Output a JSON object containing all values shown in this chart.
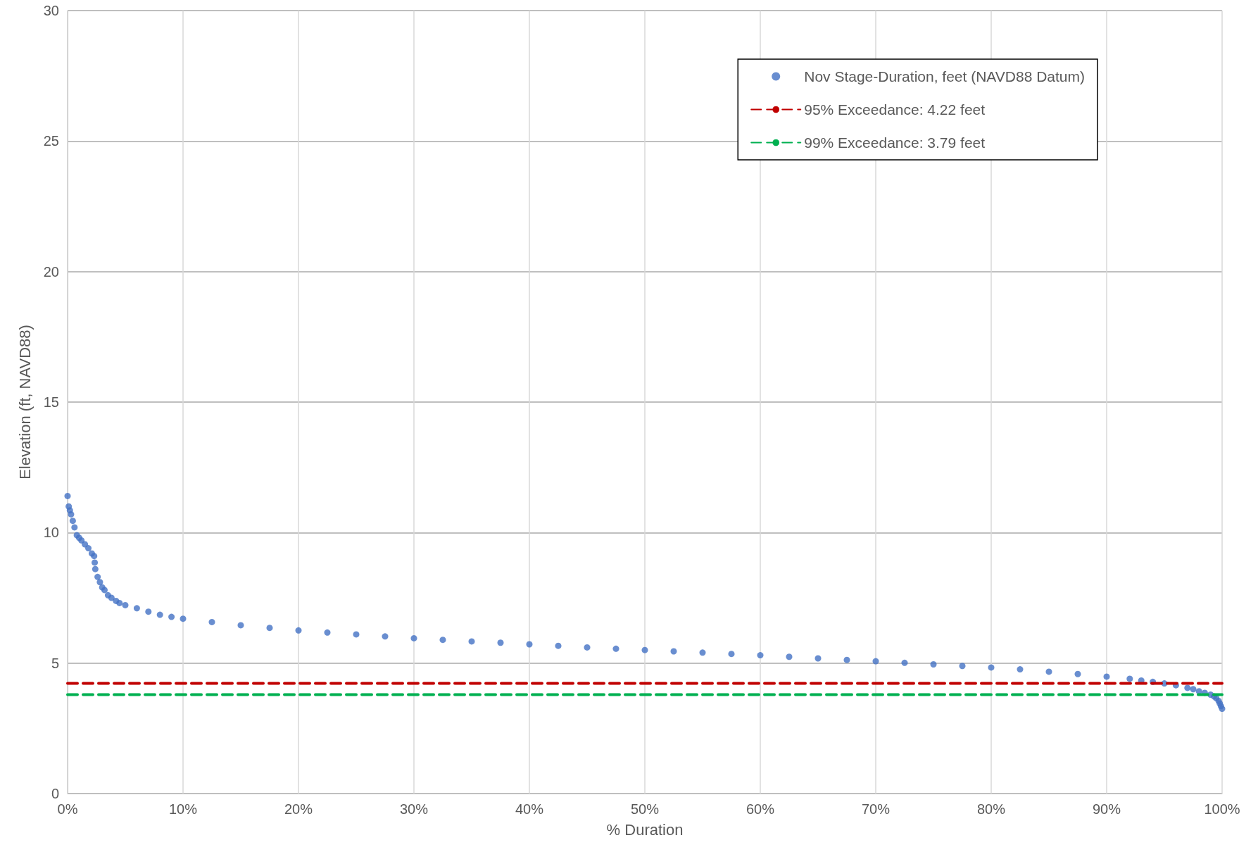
{
  "chart_data": {
    "type": "scatter",
    "xlabel": "% Duration",
    "ylabel": "Elevation (ft, NAVD88)",
    "xlim": [
      0,
      100
    ],
    "ylim": [
      0,
      30
    ],
    "xticks": [
      {
        "value": 0,
        "label": "0%"
      },
      {
        "value": 10,
        "label": "10%"
      },
      {
        "value": 20,
        "label": "20%"
      },
      {
        "value": 30,
        "label": "30%"
      },
      {
        "value": 40,
        "label": "40%"
      },
      {
        "value": 50,
        "label": "50%"
      },
      {
        "value": 60,
        "label": "60%"
      },
      {
        "value": 70,
        "label": "70%"
      },
      {
        "value": 80,
        "label": "80%"
      },
      {
        "value": 90,
        "label": "90%"
      },
      {
        "value": 100,
        "label": "100%"
      }
    ],
    "yticks": [
      0,
      5,
      10,
      15,
      20,
      25,
      30
    ],
    "grid": true,
    "legend": "top right",
    "marker": "circle",
    "series": [
      {
        "name": "Nov Stage-Duration, feet (NAVD88 Datum)",
        "color": "#4472c4",
        "x": [
          0,
          0.1,
          0.2,
          0.3,
          0.45,
          0.6,
          0.8,
          1,
          1.2,
          1.5,
          1.8,
          2.1,
          2.3,
          2.35,
          2.4,
          2.6,
          2.8,
          3,
          3.2,
          3.5,
          3.8,
          4.2,
          4.5,
          5,
          6,
          7,
          8,
          9,
          10,
          12.5,
          15,
          17.5,
          20,
          22.5,
          25,
          27.5,
          30,
          32.5,
          35,
          37.5,
          40,
          42.5,
          45,
          47.5,
          50,
          52.5,
          55,
          57.5,
          60,
          62.5,
          65,
          67.5,
          70,
          72.5,
          75,
          77.5,
          80,
          82.5,
          85,
          87.5,
          90,
          92,
          93,
          94,
          95,
          96,
          97,
          97.5,
          98,
          98.5,
          99,
          99.3,
          99.5,
          99.7,
          99.8,
          99.9,
          100
        ],
        "values": [
          11.4,
          11.0,
          10.85,
          10.7,
          10.45,
          10.2,
          9.9,
          9.8,
          9.7,
          9.55,
          9.4,
          9.2,
          9.1,
          8.85,
          8.6,
          8.3,
          8.1,
          7.9,
          7.8,
          7.6,
          7.5,
          7.38,
          7.3,
          7.22,
          7.1,
          6.97,
          6.85,
          6.77,
          6.7,
          6.57,
          6.45,
          6.35,
          6.25,
          6.17,
          6.1,
          6.02,
          5.95,
          5.89,
          5.83,
          5.78,
          5.72,
          5.66,
          5.6,
          5.55,
          5.5,
          5.45,
          5.4,
          5.35,
          5.3,
          5.24,
          5.18,
          5.12,
          5.07,
          5.01,
          4.95,
          4.89,
          4.83,
          4.76,
          4.67,
          4.58,
          4.48,
          4.4,
          4.33,
          4.28,
          4.22,
          4.15,
          4.05,
          4.0,
          3.92,
          3.86,
          3.79,
          3.72,
          3.65,
          3.55,
          3.45,
          3.35,
          3.25
        ]
      },
      {
        "name": "95% Exceedance: 4.22 feet",
        "color": "#c00000",
        "type": "line",
        "line_style": "dashed",
        "marker": "none",
        "x": [
          0,
          100
        ],
        "values": [
          4.22,
          4.22
        ]
      },
      {
        "name": "99% Exceedance: 3.79 feet",
        "color": "#00b050",
        "type": "line",
        "line_style": "dashed",
        "marker": "none",
        "x": [
          0,
          100
        ],
        "values": [
          3.79,
          3.79
        ]
      }
    ]
  }
}
